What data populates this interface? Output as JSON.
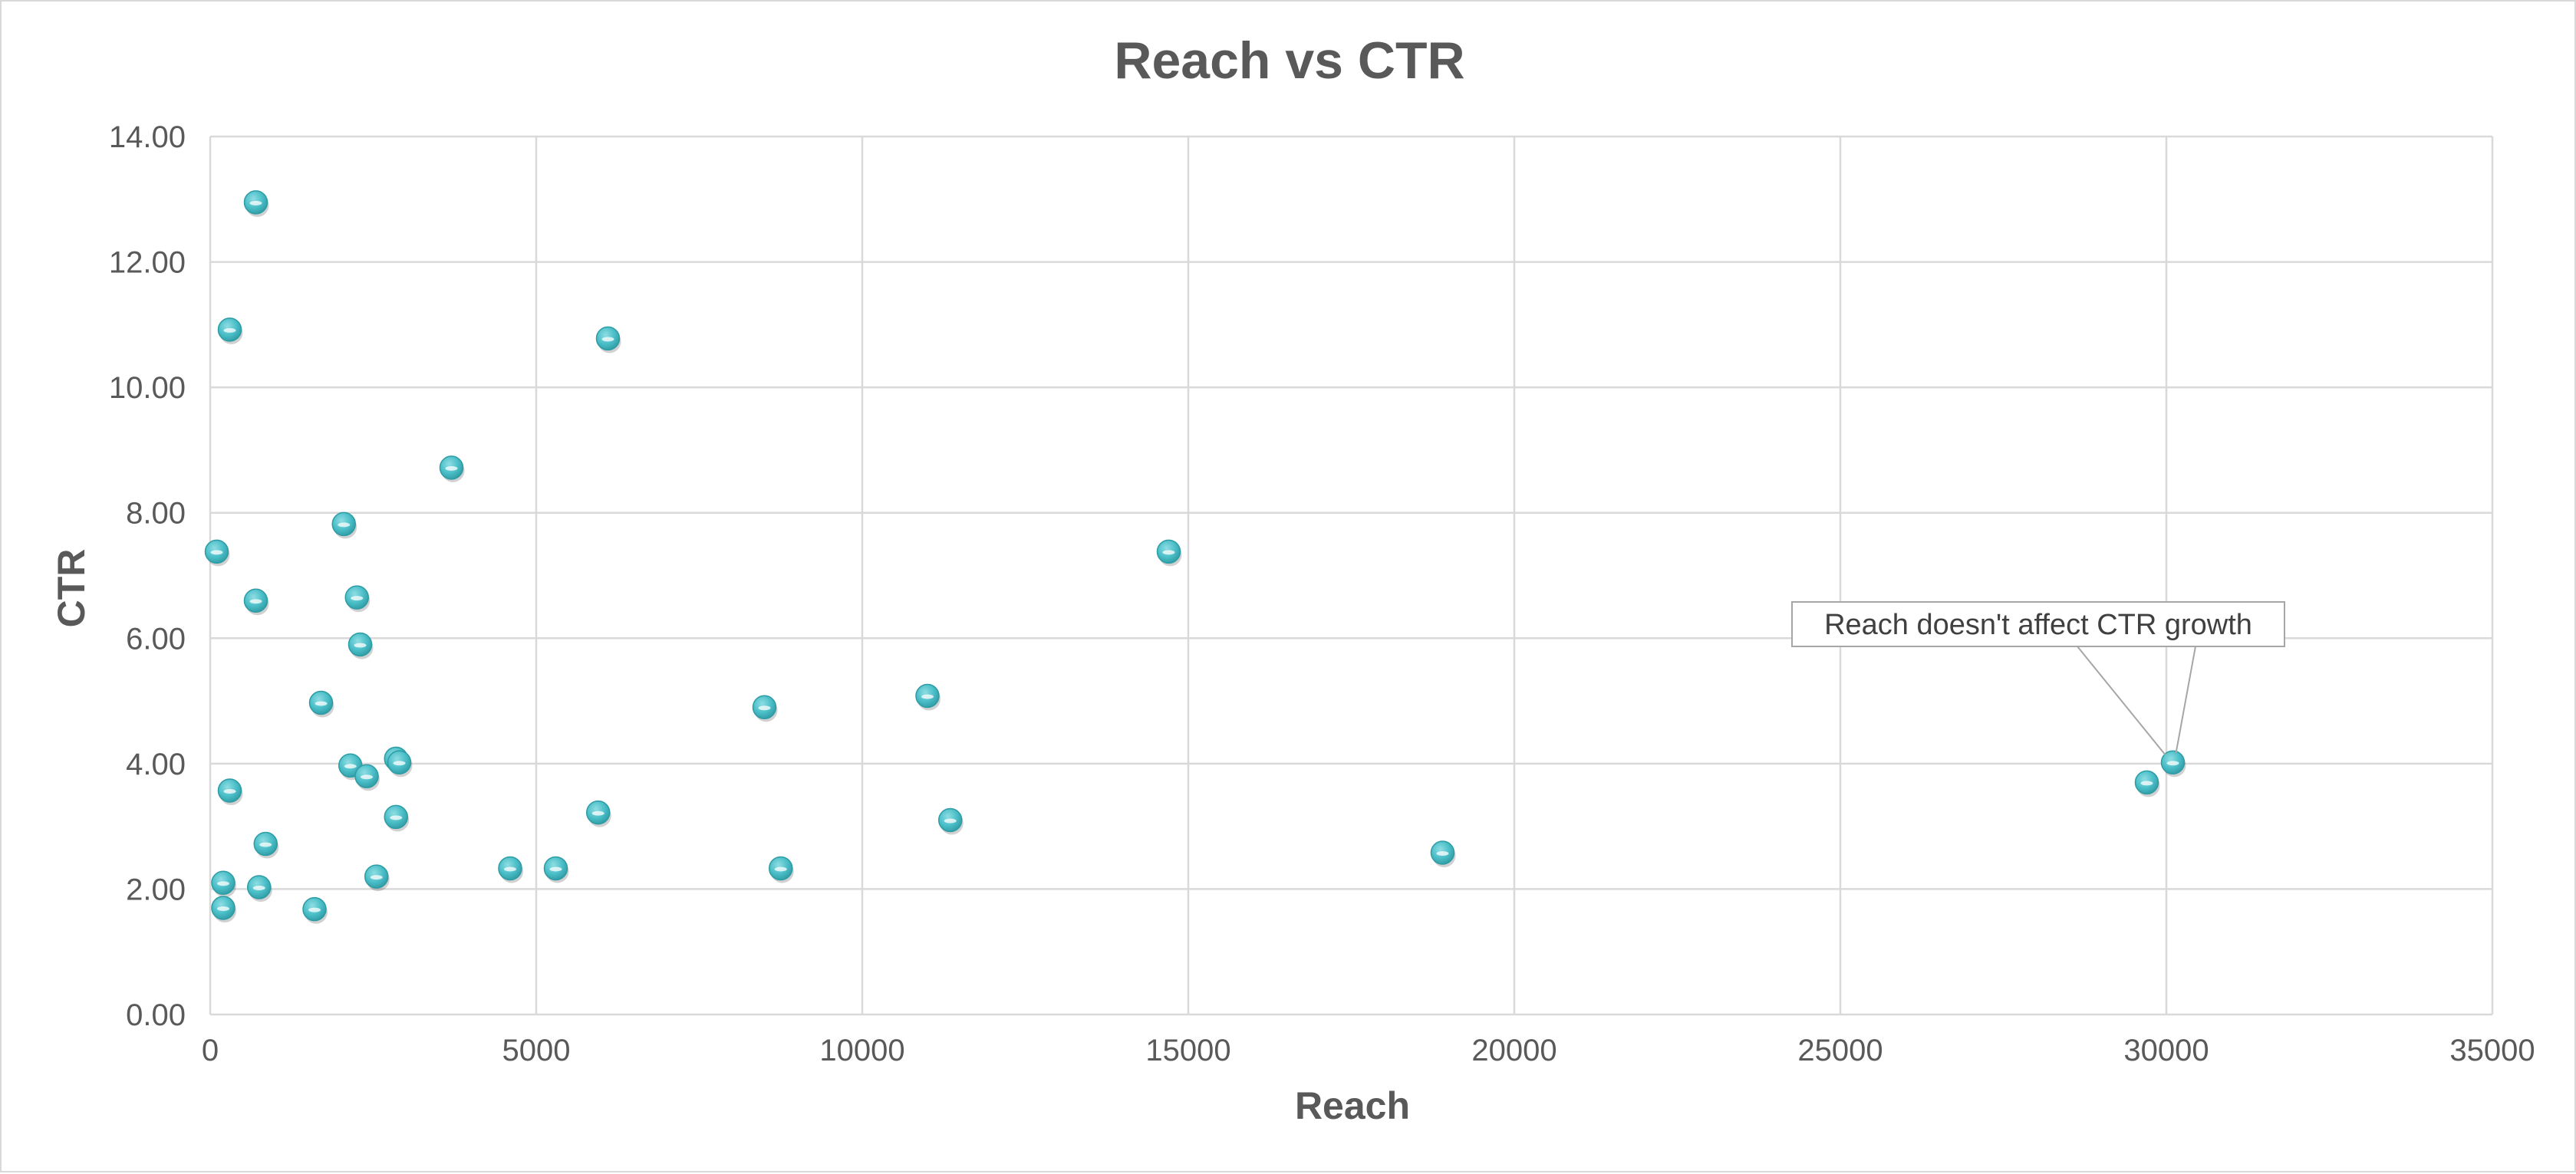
{
  "chart_data": {
    "type": "scatter",
    "title": "Reach vs CTR",
    "xlabel": "Reach",
    "ylabel": "CTR",
    "xlim": [
      0,
      35000
    ],
    "ylim": [
      0,
      14
    ],
    "x_ticks": [
      "0",
      "5000",
      "10000",
      "15000",
      "20000",
      "25000",
      "30000",
      "35000"
    ],
    "y_ticks": [
      "0.00",
      "2.00",
      "4.00",
      "6.00",
      "8.00",
      "10.00",
      "12.00",
      "14.00"
    ],
    "grid": true,
    "legend": "none",
    "marker_color": "#4BBFC8",
    "points": [
      {
        "x": 700,
        "y": 12.95
      },
      {
        "x": 300,
        "y": 10.92
      },
      {
        "x": 6100,
        "y": 10.78
      },
      {
        "x": 3700,
        "y": 8.72
      },
      {
        "x": 2050,
        "y": 7.82
      },
      {
        "x": 100,
        "y": 7.38
      },
      {
        "x": 14700,
        "y": 7.38
      },
      {
        "x": 2250,
        "y": 6.65
      },
      {
        "x": 700,
        "y": 6.6
      },
      {
        "x": 2300,
        "y": 5.9
      },
      {
        "x": 11000,
        "y": 5.08
      },
      {
        "x": 1700,
        "y": 4.97
      },
      {
        "x": 8500,
        "y": 4.9
      },
      {
        "x": 2850,
        "y": 4.08
      },
      {
        "x": 2900,
        "y": 4.02
      },
      {
        "x": 30100,
        "y": 4.02
      },
      {
        "x": 2150,
        "y": 3.97
      },
      {
        "x": 2400,
        "y": 3.8
      },
      {
        "x": 29700,
        "y": 3.7
      },
      {
        "x": 300,
        "y": 3.57
      },
      {
        "x": 5950,
        "y": 3.22
      },
      {
        "x": 2850,
        "y": 3.15
      },
      {
        "x": 11350,
        "y": 3.1
      },
      {
        "x": 850,
        "y": 2.72
      },
      {
        "x": 18900,
        "y": 2.58
      },
      {
        "x": 4600,
        "y": 2.33
      },
      {
        "x": 5300,
        "y": 2.33
      },
      {
        "x": 8750,
        "y": 2.33
      },
      {
        "x": 2550,
        "y": 2.2
      },
      {
        "x": 200,
        "y": 2.1
      },
      {
        "x": 750,
        "y": 2.03
      },
      {
        "x": 200,
        "y": 1.7
      },
      {
        "x": 1600,
        "y": 1.68
      }
    ],
    "annotations": [
      {
        "text": "Reach doesn't affect CTR growth",
        "x": 30100,
        "y": 4.02
      }
    ]
  }
}
